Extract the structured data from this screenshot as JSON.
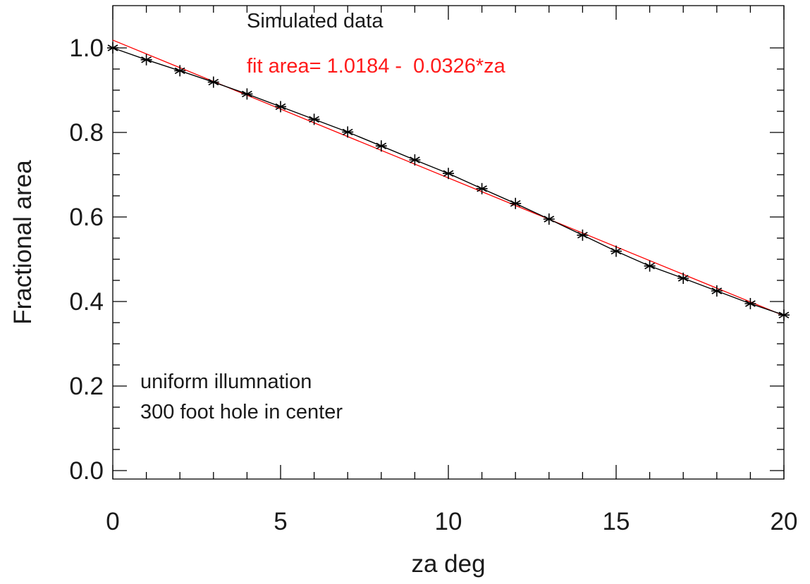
{
  "chart_data": {
    "type": "line",
    "title": "",
    "xlabel": "za deg",
    "ylabel": "Fractional area",
    "xlim": [
      0,
      20
    ],
    "ylim": [
      -0.02,
      1.1
    ],
    "x_ticks": [
      "0",
      "5",
      "10",
      "15",
      "20"
    ],
    "y_ticks": [
      "0.0",
      "0.2",
      "0.4",
      "0.6",
      "0.8",
      "1.0"
    ],
    "x_tick_values": [
      0,
      5,
      10,
      15,
      20
    ],
    "y_tick_values": [
      0.0,
      0.2,
      0.4,
      0.6,
      0.8,
      1.0
    ],
    "grid": false,
    "series": [
      {
        "color": "#000000",
        "marker": "asterisk",
        "x": [
          0,
          1,
          2,
          3,
          4,
          5,
          6,
          7,
          8,
          9,
          10,
          11,
          12,
          13,
          14,
          15,
          16,
          17,
          18,
          19,
          20
        ],
        "y": [
          1.0,
          0.972,
          0.946,
          0.919,
          0.891,
          0.861,
          0.831,
          0.801,
          0.768,
          0.735,
          0.703,
          0.667,
          0.632,
          0.595,
          0.557,
          0.519,
          0.484,
          0.455,
          0.425,
          0.395,
          0.368
        ]
      },
      {
        "color": "#ff0000",
        "marker": "none",
        "intercept": 1.0184,
        "slope": -0.0326,
        "x": [
          0,
          20
        ],
        "y": [
          1.0184,
          0.3664
        ]
      }
    ],
    "annotations": [
      {
        "text": "Simulated data",
        "color": "#1a1a1a"
      },
      {
        "text": "fit area= 1.0184 -  0.0326*za",
        "color": "#ff1a1a"
      },
      {
        "text": "uniform illumnation",
        "color": "#1a1a1a"
      },
      {
        "text": "300 foot hole in center",
        "color": "#1a1a1a"
      }
    ]
  }
}
